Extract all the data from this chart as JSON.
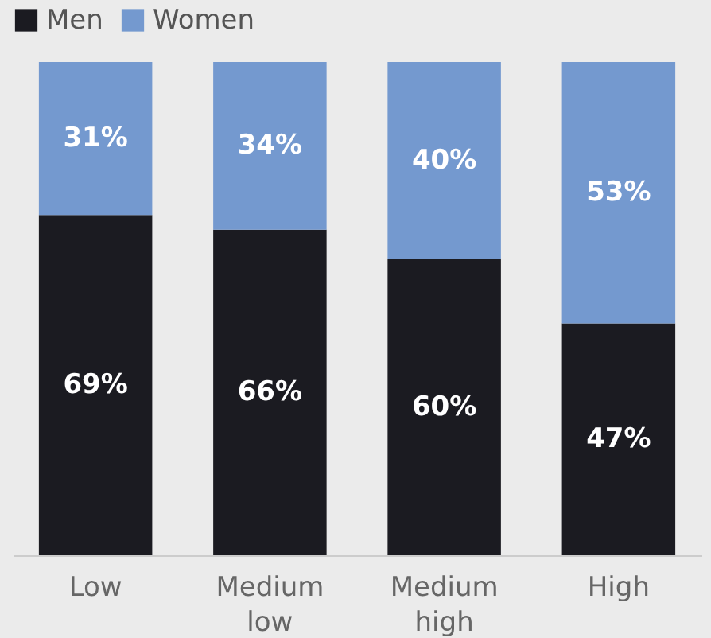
{
  "chart_data": {
    "type": "bar",
    "stacked": true,
    "categories": [
      "Low",
      "Medium low",
      "Medium high",
      "High"
    ],
    "series": [
      {
        "name": "Men",
        "color": "#1b1b21",
        "values": [
          69,
          66,
          60,
          47
        ],
        "value_labels": [
          "69%",
          "66%",
          "60%",
          "47%"
        ]
      },
      {
        "name": "Women",
        "color": "#7499cf",
        "values": [
          31,
          34,
          40,
          53
        ],
        "value_labels": [
          "31%",
          "34%",
          "40%",
          "53%"
        ]
      }
    ],
    "legend": "top"
  }
}
